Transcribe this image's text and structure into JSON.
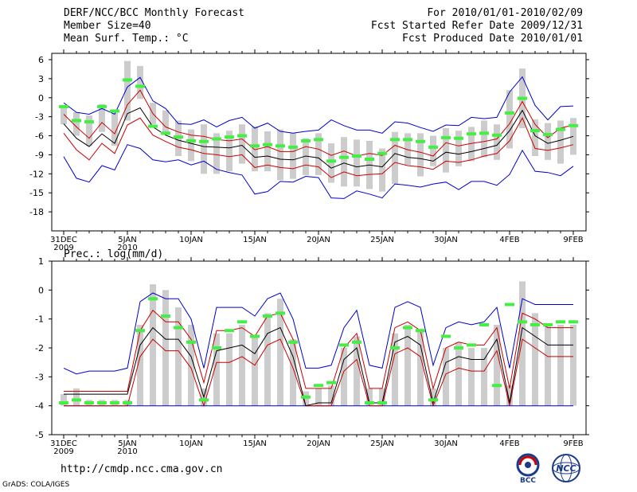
{
  "header": {
    "title": "DERF/NCC/BCC Monthly Forecast",
    "member_size": "Member Size=40",
    "variable_temp": "Mean Surf. Temp.: °C",
    "for_range": "For 2010/01/01-2010/02/09",
    "fcst_started": "Fcst Started Refer Date 2009/12/31",
    "fcst_produced": "Fcst Produced Date 2010/01/01"
  },
  "footer": {
    "url": "http://cmdp.ncc.cma.gov.cn",
    "grads": "GrADS: COLA/IGES",
    "logo_bcc": "BCC",
    "logo_ncc": "NCC"
  },
  "colors": {
    "box": "#cccccc",
    "median": "#44ee44",
    "max": "#0000cc",
    "min": "#0000cc",
    "pct": "#cc0000",
    "mean": "#000000"
  },
  "chart_data": [
    {
      "type": "box",
      "title": "Mean Surf. Temp.: °C",
      "ylim": [
        -21,
        7
      ],
      "yticks": [
        6,
        3,
        0,
        -3,
        -6,
        -9,
        -12,
        -15,
        -18
      ],
      "xticks": [
        {
          "i": 0,
          "label": "31DEC",
          "sub": "2009"
        },
        {
          "i": 5,
          "label": "5JAN",
          "sub": "2010"
        },
        {
          "i": 10,
          "label": "10JAN"
        },
        {
          "i": 15,
          "label": "15JAN"
        },
        {
          "i": 20,
          "label": "20JAN"
        },
        {
          "i": 25,
          "label": "25JAN"
        },
        {
          "i": 30,
          "label": "30JAN"
        },
        {
          "i": 35,
          "label": "4FEB"
        },
        {
          "i": 40,
          "label": "9FEB"
        }
      ],
      "start": 1,
      "max": [
        -0.8,
        -2.3,
        -2.6,
        -1.7,
        -2.6,
        1.7,
        3.2,
        -0.5,
        -1.7,
        -4.1,
        -4.2,
        -3.5,
        -4.6,
        -3.6,
        -3.1,
        -4.8,
        -4.0,
        -5.3,
        -5.6,
        -5.3,
        -5.1,
        -3.5,
        -4.4,
        -5.1,
        -5.1,
        -5.6,
        -3.8,
        -4.0,
        -4.7,
        -5.3,
        -4.3,
        -4.4,
        -3.1,
        -3.3,
        -3.1,
        0.9,
        3.3,
        -1.2,
        -3.5,
        -1.4,
        -1.3
      ],
      "p_hi": [
        -2.6,
        -4.6,
        -6.4,
        -3.9,
        -5.7,
        -1.1,
        1.2,
        -2.5,
        -4.6,
        -5.4,
        -5.9,
        -6.1,
        -6.6,
        -6.8,
        -6.5,
        -8.2,
        -7.7,
        -8.5,
        -8.5,
        -7.7,
        -8.1,
        -9.1,
        -8.4,
        -9.2,
        -8.8,
        -9.1,
        -7.5,
        -8.2,
        -8.6,
        -9.2,
        -7.1,
        -7.6,
        -7.2,
        -6.9,
        -6.5,
        -4.1,
        -0.6,
        -4.2,
        -6.3,
        -4.8,
        -4.3
      ],
      "mean": [
        -4.1,
        -6.4,
        -7.7,
        -5.7,
        -7.2,
        -2.5,
        -1.6,
        -4.6,
        -5.9,
        -6.7,
        -7.2,
        -7.7,
        -7.8,
        -7.9,
        -7.5,
        -9.4,
        -9.2,
        -9.7,
        -9.8,
        -9.2,
        -9.5,
        -11.1,
        -10.3,
        -10.9,
        -10.6,
        -10.9,
        -8.8,
        -9.4,
        -9.6,
        -10.0,
        -8.6,
        -8.9,
        -8.5,
        -8.0,
        -7.5,
        -5.2,
        -2.0,
        -6.0,
        -7.2,
        -6.7,
        -6.1
      ],
      "p_lo": [
        -5.6,
        -8.2,
        -9.8,
        -7.2,
        -8.8,
        -4.3,
        -3.2,
        -5.9,
        -6.9,
        -7.8,
        -8.2,
        -8.8,
        -9.0,
        -9.3,
        -9.0,
        -11.0,
        -10.6,
        -11.0,
        -11.2,
        -10.6,
        -10.9,
        -12.6,
        -11.7,
        -12.3,
        -12.1,
        -12.0,
        -10.2,
        -10.7,
        -10.9,
        -11.3,
        -10.0,
        -10.2,
        -9.8,
        -9.2,
        -8.8,
        -6.8,
        -3.2,
        -8.0,
        -8.3,
        -7.9,
        -7.4
      ],
      "min": [
        -9.3,
        -12.7,
        -13.3,
        -10.7,
        -11.4,
        -7.4,
        -8.0,
        -9.8,
        -10.1,
        -9.8,
        -10.6,
        -10.0,
        -11.3,
        -11.8,
        -12.2,
        -15.2,
        -14.8,
        -13.2,
        -13.3,
        -12.4,
        -12.6,
        -15.8,
        -15.9,
        -14.7,
        -15.2,
        -15.8,
        -13.6,
        -13.8,
        -14.1,
        -13.6,
        -13.3,
        -14.5,
        -13.2,
        -13.2,
        -13.8,
        -12.1,
        -8.3,
        -11.6,
        -11.8,
        -12.3,
        -10.8
      ],
      "box_hi": [
        -1.2,
        -2.3,
        -2.8,
        -1.0,
        -2.4,
        5.8,
        5.0,
        -0.8,
        -2.0,
        -3.6,
        -5.0,
        -4.2,
        -5.6,
        -5.2,
        -4.2,
        -4.5,
        -5.3,
        -5.0,
        -5.6,
        -6.4,
        -5.6,
        -7.2,
        -6.2,
        -6.6,
        -6.8,
        -8.0,
        -5.4,
        -5.6,
        -5.6,
        -6.0,
        -4.8,
        -5.2,
        -4.6,
        -3.6,
        -4.2,
        1.2,
        4.6,
        -3.4,
        -4.0,
        -3.6,
        -3.2
      ],
      "box_lo": [
        -4.2,
        -6.0,
        -7.6,
        -5.4,
        -7.6,
        -3.6,
        -0.2,
        -4.2,
        -5.8,
        -9.2,
        -10.0,
        -12.0,
        -12.0,
        -11.6,
        -10.4,
        -11.6,
        -11.6,
        -13.0,
        -12.8,
        -12.2,
        -12.2,
        -13.4,
        -14.0,
        -14.0,
        -14.4,
        -14.8,
        -13.6,
        -10.6,
        -12.4,
        -10.8,
        -11.8,
        -10.8,
        -10.0,
        -9.4,
        -9.8,
        -8.0,
        -4.8,
        -9.2,
        -9.8,
        -10.4,
        -9.0
      ],
      "median": [
        -1.4,
        -3.6,
        -3.8,
        -1.4,
        -2.1,
        2.8,
        1.8,
        -4.5,
        -5.6,
        -6.2,
        -6.8,
        -6.9,
        -6.5,
        -6.2,
        -6.0,
        -7.6,
        -7.4,
        -7.6,
        -7.8,
        -6.8,
        -6.6,
        -10.0,
        -9.4,
        -9.2,
        -9.7,
        -8.8,
        -6.6,
        -6.6,
        -6.9,
        -7.8,
        -6.3,
        -6.4,
        -5.7,
        -5.6,
        -5.9,
        -2.4,
        -0.1,
        -5.2,
        -5.8,
        -5.0,
        -4.4
      ]
    },
    {
      "type": "box",
      "title": "Prec.: log(mm/d)",
      "ylim": [
        -5,
        1
      ],
      "yticks": [
        1,
        0,
        -1,
        -2,
        -3,
        -4,
        -5
      ],
      "xticks": [
        {
          "i": 0,
          "label": "31DEC",
          "sub": "2009"
        },
        {
          "i": 5,
          "label": "5JAN",
          "sub": "2010"
        },
        {
          "i": 10,
          "label": "10JAN"
        },
        {
          "i": 15,
          "label": "15JAN"
        },
        {
          "i": 20,
          "label": "20JAN"
        },
        {
          "i": 25,
          "label": "25JAN"
        },
        {
          "i": 30,
          "label": "30JAN"
        },
        {
          "i": 35,
          "label": "4FEB"
        },
        {
          "i": 40,
          "label": "9FEB"
        }
      ],
      "start": 1,
      "max": [
        -2.7,
        -2.9,
        -2.8,
        -2.8,
        -2.8,
        -2.7,
        -0.4,
        -0.1,
        -0.3,
        -0.3,
        -1.0,
        -2.7,
        -0.6,
        -0.6,
        -0.6,
        -0.9,
        -0.3,
        -0.1,
        -1.0,
        -2.7,
        -2.7,
        -2.6,
        -1.3,
        -0.7,
        -2.6,
        -2.7,
        -0.6,
        -0.4,
        -0.6,
        -2.6,
        -1.3,
        -1.1,
        -1.2,
        -1.1,
        -0.6,
        -2.7,
        -0.3,
        -0.5,
        -0.5,
        -0.5,
        -0.5
      ],
      "p_hi": [
        -3.5,
        -3.5,
        -3.5,
        -3.5,
        -3.5,
        -3.5,
        -1.4,
        -0.7,
        -1.1,
        -1.1,
        -1.7,
        -3.2,
        -1.4,
        -1.4,
        -1.3,
        -1.6,
        -0.9,
        -0.8,
        -1.7,
        -3.4,
        -3.4,
        -3.4,
        -2.0,
        -1.5,
        -3.4,
        -3.4,
        -1.3,
        -1.1,
        -1.4,
        -3.4,
        -2.0,
        -1.8,
        -1.9,
        -1.9,
        -1.3,
        -3.4,
        -0.8,
        -1.0,
        -1.3,
        -1.3,
        -1.3
      ],
      "mean": [
        -3.6,
        -3.6,
        -3.6,
        -3.6,
        -3.6,
        -3.6,
        -1.9,
        -1.3,
        -1.7,
        -1.7,
        -2.3,
        -3.7,
        -2.1,
        -2.0,
        -1.9,
        -2.2,
        -1.5,
        -1.3,
        -2.3,
        -4.0,
        -3.9,
        -3.9,
        -2.4,
        -2.0,
        -3.9,
        -3.9,
        -1.8,
        -1.6,
        -1.9,
        -3.9,
        -2.5,
        -2.3,
        -2.4,
        -2.4,
        -1.7,
        -3.9,
        -1.3,
        -1.6,
        -1.9,
        -1.9,
        -1.9
      ],
      "p_lo": [
        -4.0,
        -4.0,
        -4.0,
        -4.0,
        -4.0,
        -4.0,
        -2.3,
        -1.7,
        -2.1,
        -2.1,
        -2.7,
        -4.0,
        -2.5,
        -2.5,
        -2.3,
        -2.6,
        -1.9,
        -1.7,
        -2.7,
        -4.0,
        -4.0,
        -4.0,
        -2.8,
        -2.4,
        -4.0,
        -4.0,
        -2.2,
        -2.0,
        -2.3,
        -4.0,
        -2.9,
        -2.7,
        -2.8,
        -2.8,
        -2.1,
        -4.0,
        -1.7,
        -2.0,
        -2.3,
        -2.3,
        -2.3
      ],
      "min": [
        -4.0,
        -4.0,
        -4.0,
        -4.0,
        -4.0,
        -4.0,
        -4.0,
        -4.0,
        -4.0,
        -4.0,
        -4.0,
        -4.0,
        -4.0,
        -4.0,
        -4.0,
        -4.0,
        -4.0,
        -4.0,
        -4.0,
        -4.0,
        -4.0,
        -4.0,
        -4.0,
        -4.0,
        -4.0,
        -4.0,
        -4.0,
        -4.0,
        -4.0,
        -4.0,
        -4.0,
        -4.0,
        -4.0,
        -4.0,
        -4.0,
        -4.0,
        -4.0,
        -4.0,
        -4.0,
        -4.0,
        -4.0
      ],
      "box_hi": [
        -3.6,
        -3.4,
        -3.8,
        -3.8,
        -3.8,
        -3.8,
        -1.2,
        0.2,
        0.0,
        -0.6,
        -1.2,
        -3.4,
        -1.5,
        -1.5,
        -1.2,
        -1.6,
        -0.8,
        -0.3,
        -1.7,
        -3.5,
        -3.4,
        -3.3,
        -2.0,
        -1.6,
        -3.4,
        -3.4,
        -1.5,
        -1.2,
        -1.4,
        -3.4,
        -2.0,
        -1.8,
        -2.0,
        -2.0,
        -1.2,
        -3.3,
        0.3,
        -0.8,
        -1.2,
        -1.2,
        -1.2
      ],
      "box_lo": [
        -4.0,
        -4.0,
        -4.0,
        -4.0,
        -4.0,
        -4.0,
        -4.0,
        -4.0,
        -4.0,
        -4.0,
        -4.0,
        -4.0,
        -4.0,
        -4.0,
        -4.0,
        -4.0,
        -4.0,
        -4.0,
        -4.0,
        -4.0,
        -4.0,
        -4.0,
        -4.0,
        -4.0,
        -4.0,
        -4.0,
        -4.0,
        -4.0,
        -4.0,
        -4.0,
        -4.0,
        -4.0,
        -4.0,
        -4.0,
        -4.0,
        -4.0,
        -4.0,
        -4.0,
        -4.0,
        -4.0,
        -4.0
      ],
      "median": [
        -3.9,
        -3.8,
        -3.9,
        -3.9,
        -3.9,
        -3.9,
        -1.4,
        -0.3,
        -0.9,
        -1.3,
        -1.8,
        -3.8,
        -2.0,
        -1.4,
        -1.1,
        -1.6,
        -0.9,
        -0.8,
        -1.8,
        -3.7,
        -3.3,
        -3.2,
        -1.9,
        -1.8,
        -3.9,
        -3.9,
        -2.0,
        -1.3,
        -1.4,
        -3.8,
        -1.6,
        -2.0,
        -1.9,
        -1.2,
        -3.3,
        -0.5,
        -1.1,
        -1.2,
        -1.2,
        -1.1,
        -1.1
      ]
    }
  ]
}
